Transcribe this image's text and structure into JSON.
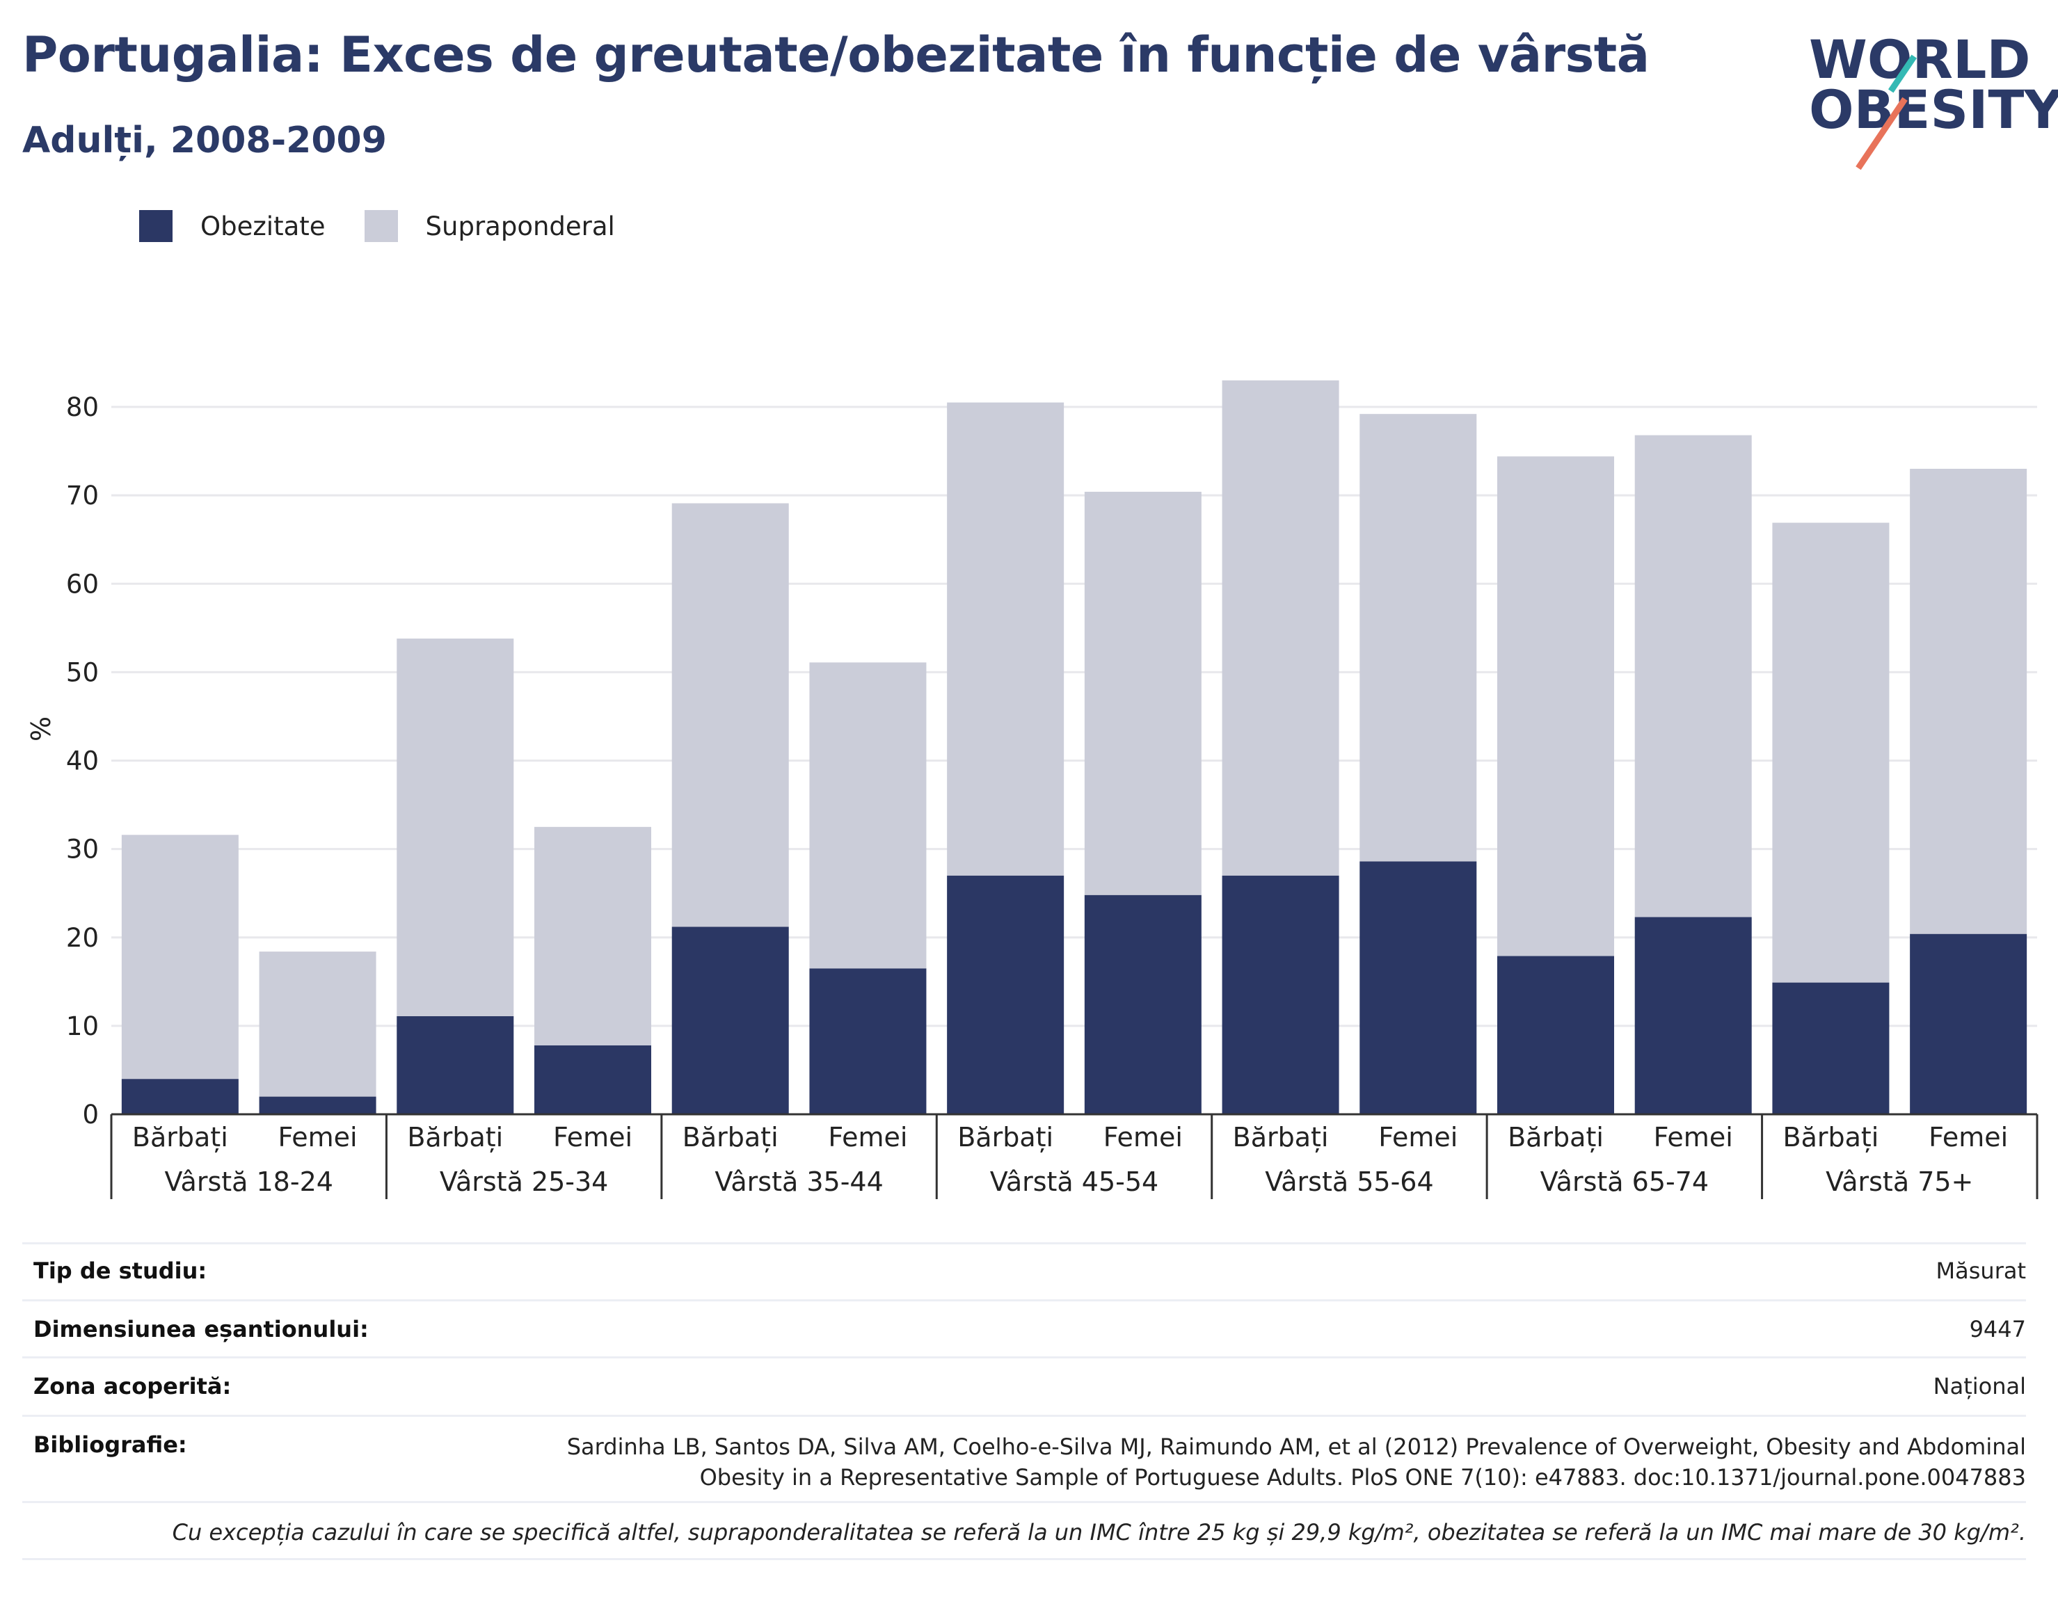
{
  "header": {
    "title": "Portugalia: Exces de greutate/obezitate în funcție de vârstă",
    "subtitle": "Adulți, 2008-2009"
  },
  "logo": {
    "line1": "WORLD",
    "line2": "OBESITY"
  },
  "colors": {
    "obesity": "#2b3764",
    "overweight": "#cbcdd9",
    "text_dark": "#2b3a67",
    "grid": "#e8e8ec",
    "accent_teal": "#34b9b4",
    "accent_coral": "#e8735a"
  },
  "legend": [
    {
      "label": "Obezitate",
      "color": "#2b3764"
    },
    {
      "label": "Supraponderal",
      "color": "#cbcdd9"
    }
  ],
  "chart_data": {
    "type": "bar",
    "stacked": true,
    "ylabel": "%",
    "xlabel": "",
    "ylim": [
      0,
      83
    ],
    "yticks": [
      0,
      10,
      20,
      30,
      40,
      50,
      60,
      70,
      80
    ],
    "grid": true,
    "legend_position": "top-left",
    "groups": [
      "Vârstă 18-24",
      "Vârstă 25-34",
      "Vârstă 35-44",
      "Vârstă 45-54",
      "Vârstă 55-64",
      "Vârstă 65-74",
      "Vârstă 75+"
    ],
    "subcategories": [
      "Bărbați",
      "Femei"
    ],
    "series": [
      {
        "name": "Obezitate",
        "values": [
          4.0,
          2.0,
          11.1,
          7.8,
          21.2,
          16.5,
          27.0,
          24.8,
          27.0,
          28.6,
          17.9,
          22.3,
          14.9,
          20.4
        ]
      },
      {
        "name": "Supraponderal",
        "values": [
          27.6,
          16.4,
          42.7,
          24.7,
          47.9,
          34.6,
          53.5,
          45.6,
          56.0,
          50.6,
          56.5,
          54.5,
          52.0,
          52.6
        ]
      }
    ],
    "totals": [
      31.6,
      18.4,
      53.8,
      32.5,
      69.1,
      51.1,
      80.5,
      70.4,
      83.0,
      79.2,
      74.4,
      76.8,
      66.9,
      73.0
    ]
  },
  "info": [
    {
      "key": "Tip de studiu:",
      "value": "Măsurat"
    },
    {
      "key": "Dimensiunea eșantionului:",
      "value": "9447"
    },
    {
      "key": "Zona acoperită:",
      "value": "Național"
    },
    {
      "key": "Bibliografie:",
      "value": "Sardinha LB, Santos DA, Silva AM, Coelho-e-Silva MJ, Raimundo AM, et al (2012) Prevalence of Overweight, Obesity and Abdominal Obesity in a Representative Sample of Portuguese Adults. PloS ONE 7(10): e47883. doc:10.1371/journal.pone.0047883"
    }
  ],
  "footnote": "Cu excepția cazului în care se specifică altfel, supraponderalitatea se referă la un IMC între 25 kg și 29,9 kg/m², obezitatea se referă la un IMC mai mare de 30 kg/m²."
}
